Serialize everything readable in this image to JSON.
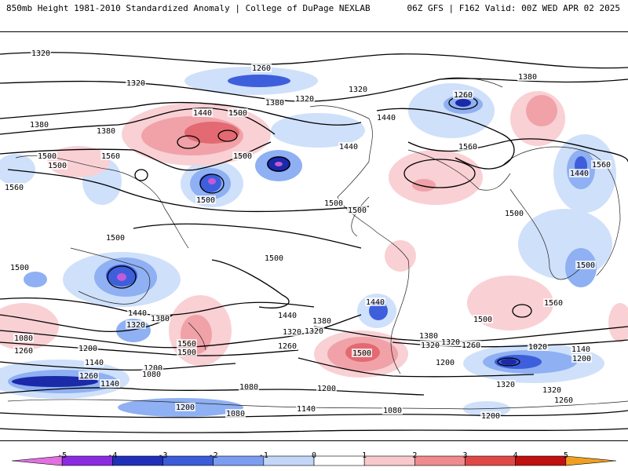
{
  "header": {
    "left": "850mb Height 1981-2010 Standardized Anomaly | College of DuPage NEXLAB",
    "right": "06Z GFS | F162 Valid: 00Z WED APR 02 2025"
  },
  "contour_labels": [
    "1320",
    "1320",
    "1260",
    "1320",
    "1380",
    "1260",
    "1380",
    "1320",
    "1440",
    "1500",
    "1440",
    "1380",
    "1500",
    "1380",
    "1560",
    "1500",
    "1560",
    "1500",
    "1440",
    "1560",
    "1500",
    "1500",
    "1500",
    "1440",
    "1560",
    "1500",
    "1500",
    "1500",
    "1500",
    "1500",
    "1440",
    "1320",
    "1380",
    "1560",
    "1500",
    "1440",
    "1380",
    "1320",
    "1260",
    "1500",
    "1440",
    "1320",
    "1380",
    "1560",
    "1500",
    "1260",
    "1080",
    "1200",
    "1140",
    "1200",
    "1020",
    "1140",
    "1260",
    "1140",
    "1080",
    "1200",
    "1320",
    "1260",
    "1080",
    "1200",
    "1140",
    "1080",
    "1200",
    "1320",
    "1260",
    "1320",
    "1320",
    "1200",
    "1080",
    "1200"
  ],
  "colorbar": {
    "ticks": [
      "-5",
      "-4",
      "-3",
      "-2",
      "-1",
      "0",
      "1",
      "2",
      "3",
      "4",
      "5"
    ],
    "colors": [
      "#e070e0",
      "#8a2be2",
      "#1f2fb8",
      "#3b5bd9",
      "#7b9cf0",
      "#c3d6f8",
      "#ffffff",
      "#f8c8cc",
      "#ef8a8f",
      "#e04848",
      "#c01010",
      "#f0a020"
    ]
  },
  "anomaly_palette": {
    "neg1": "#cfe0fa",
    "neg2": "#8fb0f2",
    "neg3": "#3d5fdc",
    "neg4": "#1a2aa8",
    "neg5": "#c45ad8",
    "pos1": "#f9d0d4",
    "pos2": "#f0a2a8",
    "pos3": "#e36a72"
  }
}
